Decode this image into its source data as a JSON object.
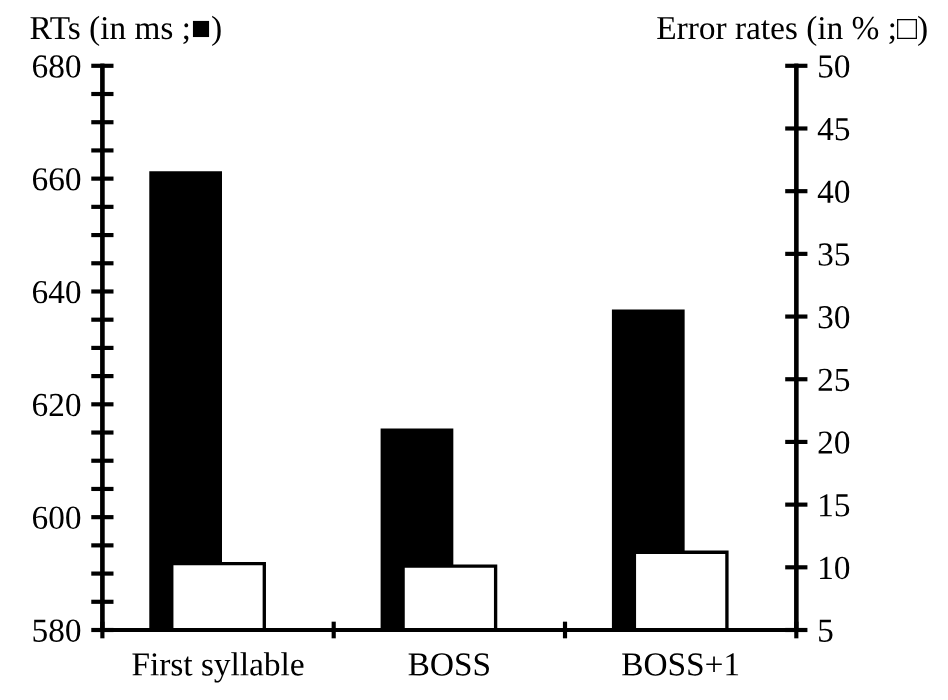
{
  "chart_data": {
    "type": "bar",
    "categories": [
      "First syllable",
      "BOSS",
      "BOSS+1"
    ],
    "ylabel": "RTs (in ms ;■)",
    "y2label": "Error rates (in % ;□)",
    "series": [
      {
        "color": "#000000",
        "values": [
          661,
          615.4,
          636.5
        ]
      },
      {
        "color": "#ffffff",
        "values": [
          10.3,
          10.1,
          11.2
        ],
        "axis": "y2"
      }
    ],
    "ylim": [
      580,
      680
    ],
    "yticks": [
      580,
      {
        "value": 585,
        "label": null
      },
      {
        "value": 590,
        "label": null
      },
      {
        "value": 595,
        "label": null
      },
      600,
      {
        "value": 605,
        "label": null
      },
      {
        "value": 610,
        "label": null
      },
      {
        "value": 615,
        "label": null
      },
      620,
      {
        "value": 625,
        "label": null
      },
      {
        "value": 630,
        "label": null
      },
      {
        "value": 635,
        "label": null
      },
      640,
      {
        "value": 645,
        "label": null
      },
      {
        "value": 650,
        "label": null
      },
      {
        "value": 655,
        "label": null
      },
      660,
      {
        "value": 665,
        "label": null
      },
      {
        "value": 670,
        "label": null
      },
      {
        "value": 675,
        "label": null
      },
      680
    ],
    "y2lim": [
      5,
      50
    ],
    "y2ticks": [
      5,
      10,
      15,
      20,
      25,
      30,
      35,
      40,
      45,
      50
    ],
    "grid": false,
    "legend": false
  }
}
